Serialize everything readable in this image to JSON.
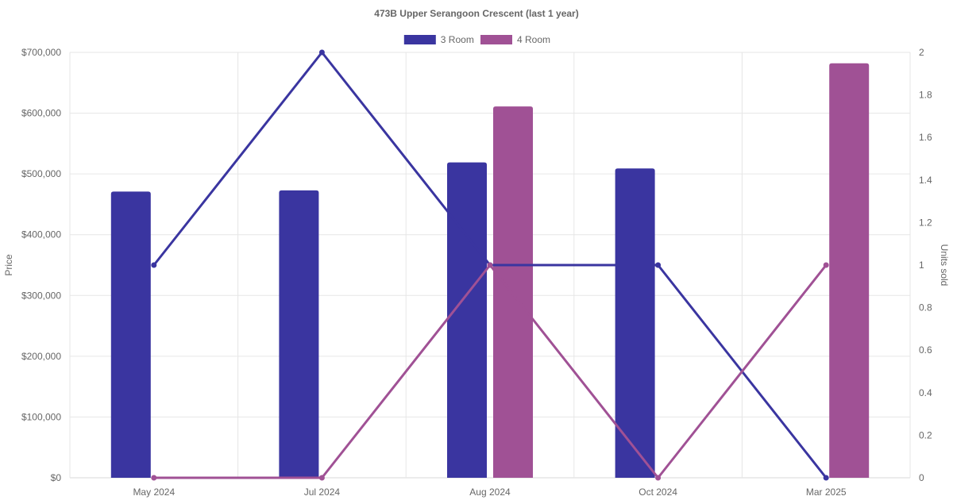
{
  "chart_data": {
    "type": "bar",
    "title": "473B Upper Serangoon Crescent (last 1 year)",
    "categories": [
      "May 2024",
      "Jul 2024",
      "Aug 2024",
      "Oct 2024",
      "Mar 2025"
    ],
    "y_left": {
      "label": "Price",
      "min": 0,
      "max": 700000,
      "step": 100000,
      "tick_labels": [
        "$0",
        "$100,000",
        "$200,000",
        "$300,000",
        "$400,000",
        "$500,000",
        "$600,000",
        "$700,000"
      ]
    },
    "y_right": {
      "label": "Units sold",
      "min": 0,
      "max": 2,
      "step": 0.2,
      "tick_labels": [
        "0",
        "0.2",
        "0.4",
        "0.6",
        "0.8",
        "1",
        "1.2",
        "1.4",
        "1.6",
        "1.8",
        "2"
      ]
    },
    "series": [
      {
        "name": "3 Room",
        "color": "#3a35a0",
        "price_values": [
          471000,
          473000,
          519000,
          509000,
          null
        ],
        "units_values": [
          1,
          2,
          1,
          1,
          0
        ]
      },
      {
        "name": "4 Room",
        "color": "#a05195",
        "price_values": [
          null,
          null,
          611000,
          null,
          682000
        ],
        "units_values": [
          0,
          0,
          1,
          0,
          1
        ]
      }
    ],
    "grid": true,
    "legend_position": "top-center"
  }
}
